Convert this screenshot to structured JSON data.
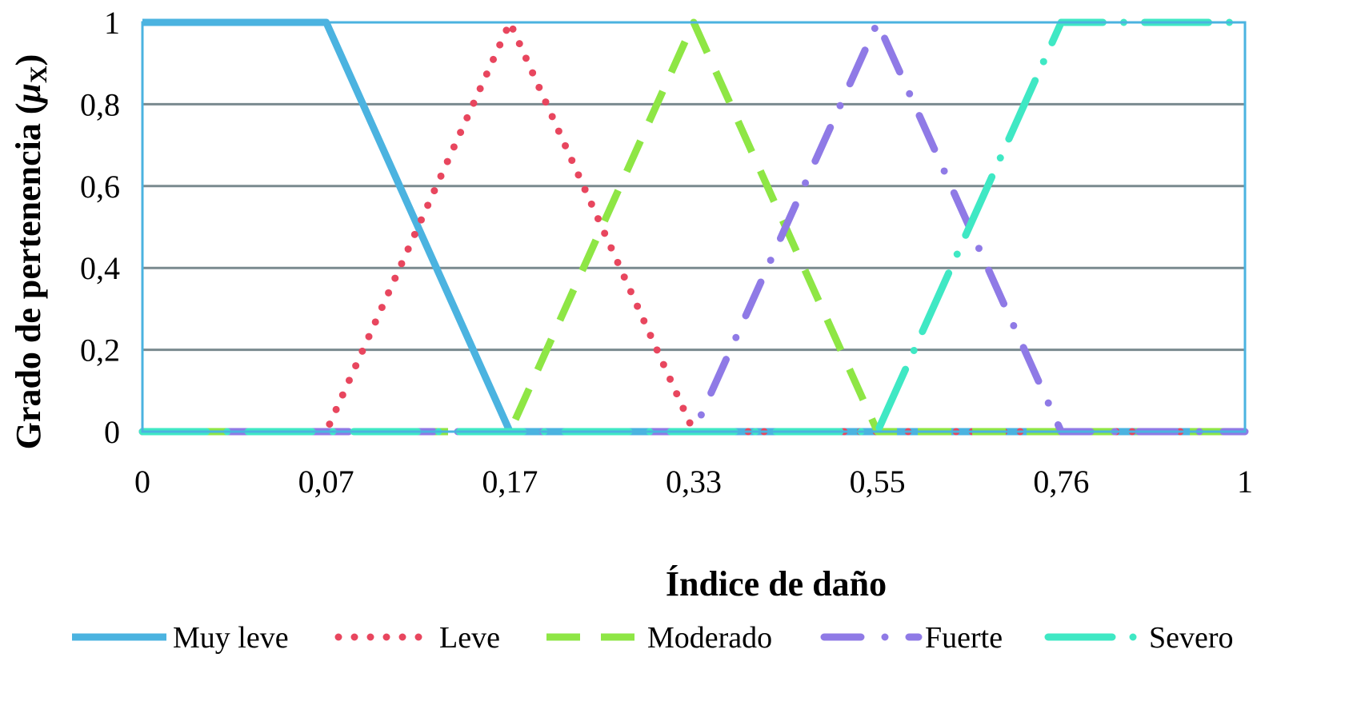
{
  "chart_data": {
    "type": "line",
    "title": "",
    "xlabel": "Índice de daño",
    "ylabel_main": "Grado de pertenencia (",
    "ylabel_mu": "μ",
    "ylabel_sub": "X",
    "ylabel_close": ")",
    "x_ticks": [
      {
        "label": "0",
        "value": 0
      },
      {
        "label": "0,07",
        "value": 0.07
      },
      {
        "label": "0,17",
        "value": 0.17
      },
      {
        "label": "0,33",
        "value": 0.33
      },
      {
        "label": "0,55",
        "value": 0.55
      },
      {
        "label": "0,76",
        "value": 0.76
      },
      {
        "label": "1",
        "value": 1
      }
    ],
    "y_ticks": [
      {
        "label": "0",
        "value": 0
      },
      {
        "label": "0,2",
        "value": 0.2
      },
      {
        "label": "0,4",
        "value": 0.4
      },
      {
        "label": "0,6",
        "value": 0.6
      },
      {
        "label": "0,8",
        "value": 0.8
      },
      {
        "label": "1",
        "value": 1
      }
    ],
    "ylim": [
      0,
      1
    ],
    "grid": true,
    "legend_position": "bottom",
    "series": [
      {
        "name": "Muy leve",
        "color": "#4bb3e0",
        "dash": "solid",
        "points": [
          [
            0,
            1
          ],
          [
            0.07,
            1
          ],
          [
            0.17,
            0
          ],
          [
            1,
            0
          ]
        ]
      },
      {
        "name": "Leve",
        "color": "#e8465e",
        "dash": "dot",
        "points": [
          [
            0,
            0
          ],
          [
            0.07,
            0
          ],
          [
            0.17,
            1
          ],
          [
            0.33,
            0
          ],
          [
            1,
            0
          ]
        ]
      },
      {
        "name": "Moderado",
        "color": "#8ee645",
        "dash": "dash",
        "points": [
          [
            0,
            0
          ],
          [
            0.17,
            0
          ],
          [
            0.33,
            1
          ],
          [
            0.55,
            0
          ],
          [
            1,
            0
          ]
        ]
      },
      {
        "name": "Fuerte",
        "color": "#8f7ae6",
        "dash": "dashdot",
        "points": [
          [
            0,
            0
          ],
          [
            0.33,
            0
          ],
          [
            0.55,
            1
          ],
          [
            0.76,
            0
          ],
          [
            1,
            0
          ]
        ]
      },
      {
        "name": "Severo",
        "color": "#3fe8c4",
        "dash": "longdashdot",
        "points": [
          [
            0,
            0
          ],
          [
            0.55,
            0
          ],
          [
            0.76,
            1
          ],
          [
            1,
            1
          ]
        ]
      }
    ]
  }
}
